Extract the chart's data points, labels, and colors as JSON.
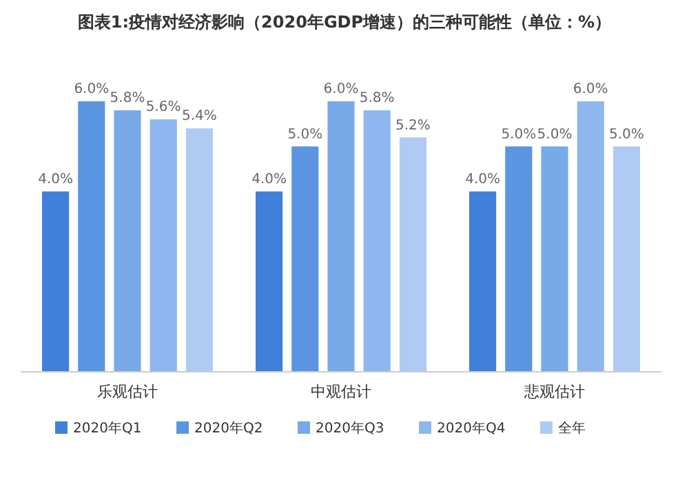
{
  "chart_data": {
    "type": "bar",
    "title": "图表1:疫情对经济影响（2020年GDP增速）的三种可能性（单位：%）",
    "categories": [
      "乐观估计",
      "中观估计",
      "悲观估计"
    ],
    "series": [
      {
        "name": "2020年Q1",
        "color": "#3f80da",
        "values": [
          4.0,
          4.0,
          4.0
        ],
        "value_labels": [
          "4.0%",
          "4.0%",
          "4.0%"
        ]
      },
      {
        "name": "2020年Q2",
        "color": "#5b95e1",
        "values": [
          6.0,
          5.0,
          5.0
        ],
        "value_labels": [
          "6.0%",
          "5.0%",
          "5.0%"
        ]
      },
      {
        "name": "2020年Q3",
        "color": "#78a9e8",
        "values": [
          5.8,
          6.0,
          5.0
        ],
        "value_labels": [
          "5.8%",
          "6.0%",
          "5.0%"
        ]
      },
      {
        "name": "2020年Q4",
        "color": "#8db7ee",
        "values": [
          5.6,
          5.8,
          6.0
        ],
        "value_labels": [
          "5.6%",
          "5.8%",
          "6.0%"
        ]
      },
      {
        "name": "全年",
        "color": "#afcbf3",
        "values": [
          5.4,
          5.2,
          5.0
        ],
        "value_labels": [
          "5.4%",
          "5.2%",
          "5.0%"
        ]
      }
    ],
    "legend": "bottom"
  }
}
